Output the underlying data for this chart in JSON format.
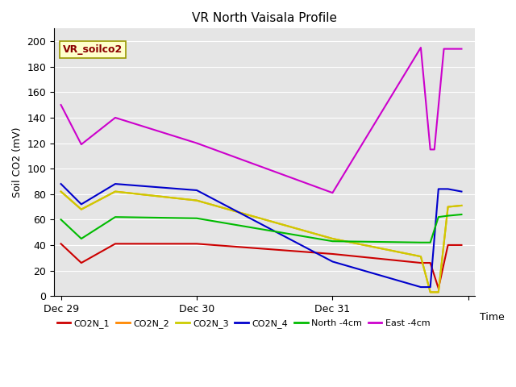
{
  "title": "VR North Vaisala Profile",
  "xlabel": "Time",
  "ylabel": "Soil CO2 (mV)",
  "annotation": "VR_soilco2",
  "ylim": [
    0,
    210
  ],
  "yticks": [
    0,
    20,
    40,
    60,
    80,
    100,
    120,
    140,
    160,
    180,
    200
  ],
  "background_color": "#e5e5e5",
  "series": {
    "CO2N_1": {
      "color": "#cc0000",
      "x": [
        0,
        0.15,
        0.4,
        1.0,
        2.0,
        2.65,
        2.72,
        2.78,
        2.85,
        2.95
      ],
      "y": [
        41,
        26,
        41,
        41,
        33,
        26,
        26,
        6,
        40,
        40
      ]
    },
    "CO2N_2": {
      "color": "#ff8800",
      "x": [
        0,
        0.15,
        0.4,
        1.0,
        2.0,
        2.65,
        2.72,
        2.78,
        2.85,
        2.95
      ],
      "y": [
        82,
        68,
        82,
        75,
        45,
        31,
        3,
        3,
        70,
        71
      ]
    },
    "CO2N_3": {
      "color": "#cccc00",
      "x": [
        0,
        0.15,
        0.4,
        1.0,
        2.0,
        2.65,
        2.72,
        2.78,
        2.85,
        2.95
      ],
      "y": [
        82,
        68,
        82,
        75,
        45,
        31,
        3,
        3,
        70,
        71
      ]
    },
    "CO2N_4": {
      "color": "#0000cc",
      "x": [
        0,
        0.15,
        0.4,
        1.0,
        2.0,
        2.65,
        2.72,
        2.78,
        2.85,
        2.95
      ],
      "y": [
        88,
        72,
        88,
        83,
        27,
        7,
        7,
        84,
        84,
        82
      ]
    },
    "North_4cm": {
      "color": "#00bb00",
      "x": [
        0,
        0.15,
        0.4,
        1.0,
        2.0,
        2.65,
        2.72,
        2.78,
        2.85,
        2.95
      ],
      "y": [
        60,
        45,
        62,
        61,
        43,
        42,
        42,
        62,
        63,
        64
      ]
    },
    "East_4cm": {
      "color": "#cc00cc",
      "x": [
        0,
        0.15,
        0.4,
        1.0,
        2.0,
        2.65,
        2.72,
        2.75,
        2.82,
        2.87,
        2.95
      ],
      "y": [
        150,
        119,
        140,
        120,
        81,
        195,
        115,
        115,
        194,
        194,
        194
      ]
    }
  },
  "xtick_positions": [
    0,
    1,
    2,
    3
  ],
  "xticklabels": [
    "Dec 29",
    "Dec 30",
    "Dec 31",
    ""
  ],
  "xlim": [
    -0.05,
    3.05
  ],
  "legend_labels": [
    "CO2N_1",
    "CO2N_2",
    "CO2N_3",
    "CO2N_4",
    "North -4cm",
    "East -4cm"
  ],
  "legend_colors": [
    "#cc0000",
    "#ff8800",
    "#cccc00",
    "#0000cc",
    "#00bb00",
    "#cc00cc"
  ]
}
